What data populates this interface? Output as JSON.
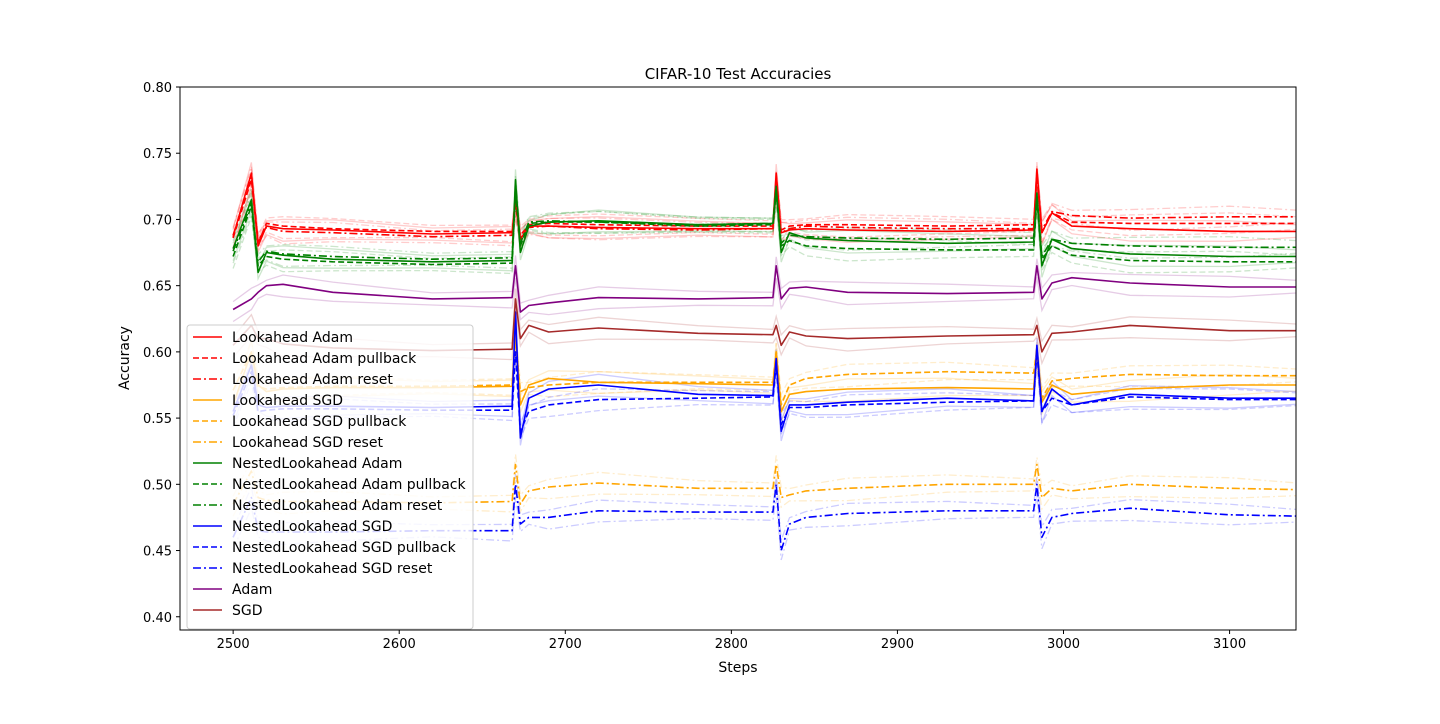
{
  "chart_data": {
    "type": "line",
    "title": "CIFAR-10 Test Accuracies",
    "xlabel": "Steps",
    "ylabel": "Accuracy",
    "xlim": [
      2468,
      3140
    ],
    "ylim": [
      0.39,
      0.8
    ],
    "xticks": [
      2500,
      2600,
      2700,
      2800,
      2900,
      3000,
      3100
    ],
    "yticks": [
      0.4,
      0.45,
      0.5,
      0.55,
      0.6,
      0.65,
      0.7,
      0.75,
      0.8
    ],
    "ytick_labels": [
      "0.40",
      "0.45",
      "0.50",
      "0.55",
      "0.60",
      "0.65",
      "0.70",
      "0.75",
      "0.80"
    ],
    "grid": false,
    "legend_position": "lower-left",
    "x": [
      2500,
      2511,
      2515,
      2520,
      2530,
      2560,
      2620,
      2668,
      2670,
      2673,
      2678,
      2690,
      2720,
      2780,
      2825,
      2827,
      2830,
      2835,
      2845,
      2870,
      2930,
      2982,
      2984,
      2987,
      2993,
      3005,
      3040,
      3100,
      3140
    ],
    "series": [
      {
        "name": "Lookahead Adam",
        "color": "#ff0000",
        "dash": "solid",
        "values": [
          0.687,
          0.735,
          0.68,
          0.695,
          0.693,
          0.692,
          0.689,
          0.69,
          0.715,
          0.685,
          0.695,
          0.695,
          0.694,
          0.693,
          0.693,
          0.735,
          0.69,
          0.692,
          0.693,
          0.692,
          0.691,
          0.692,
          0.738,
          0.69,
          0.705,
          0.695,
          0.693,
          0.691,
          0.691
        ]
      },
      {
        "name": "Lookahead Adam pullback",
        "color": "#ff0000",
        "dash": "dashed",
        "values": [
          0.686,
          0.73,
          0.682,
          0.697,
          0.695,
          0.693,
          0.691,
          0.691,
          0.71,
          0.688,
          0.696,
          0.697,
          0.696,
          0.695,
          0.695,
          0.73,
          0.692,
          0.695,
          0.696,
          0.696,
          0.695,
          0.696,
          0.733,
          0.69,
          0.705,
          0.698,
          0.697,
          0.697,
          0.697
        ]
      },
      {
        "name": "Lookahead Adam reset",
        "color": "#ff0000",
        "dash": "dashdot",
        "values": [
          0.688,
          0.732,
          0.684,
          0.694,
          0.691,
          0.69,
          0.687,
          0.688,
          0.712,
          0.686,
          0.694,
          0.695,
          0.693,
          0.692,
          0.693,
          0.728,
          0.69,
          0.693,
          0.695,
          0.694,
          0.693,
          0.693,
          0.735,
          0.692,
          0.706,
          0.703,
          0.701,
          0.702,
          0.702
        ]
      },
      {
        "name": "Lookahead SGD",
        "color": "#ffa500",
        "dash": "solid",
        "values": [
          0.56,
          0.6,
          0.575,
          0.57,
          0.572,
          0.573,
          0.573,
          0.574,
          0.615,
          0.56,
          0.575,
          0.58,
          0.577,
          0.576,
          0.575,
          0.6,
          0.555,
          0.568,
          0.57,
          0.572,
          0.573,
          0.572,
          0.6,
          0.562,
          0.575,
          0.568,
          0.572,
          0.575,
          0.575
        ]
      },
      {
        "name": "Lookahead SGD pullback",
        "color": "#ffa500",
        "dash": "dashed",
        "values": [
          0.571,
          0.6,
          0.574,
          0.572,
          0.573,
          0.574,
          0.574,
          0.575,
          0.61,
          0.57,
          0.573,
          0.575,
          0.577,
          0.577,
          0.577,
          0.6,
          0.56,
          0.575,
          0.58,
          0.583,
          0.585,
          0.584,
          0.602,
          0.565,
          0.578,
          0.58,
          0.583,
          0.582,
          0.582
        ]
      },
      {
        "name": "Lookahead SGD reset",
        "color": "#ffa500",
        "dash": "dashdot",
        "values": [
          0.485,
          0.51,
          0.49,
          0.488,
          0.487,
          0.487,
          0.486,
          0.487,
          0.515,
          0.485,
          0.495,
          0.498,
          0.501,
          0.497,
          0.497,
          0.515,
          0.49,
          0.492,
          0.495,
          0.497,
          0.5,
          0.5,
          0.515,
          0.49,
          0.497,
          0.495,
          0.5,
          0.497,
          0.496
        ]
      },
      {
        "name": "NestedLookahead Adam",
        "color": "#008000",
        "dash": "solid",
        "values": [
          0.678,
          0.715,
          0.66,
          0.675,
          0.673,
          0.67,
          0.668,
          0.669,
          0.73,
          0.675,
          0.695,
          0.698,
          0.699,
          0.696,
          0.697,
          0.725,
          0.675,
          0.69,
          0.686,
          0.684,
          0.682,
          0.683,
          0.72,
          0.665,
          0.685,
          0.678,
          0.674,
          0.672,
          0.672
        ]
      },
      {
        "name": "NestedLookahead Adam pullback",
        "color": "#008000",
        "dash": "dashed",
        "values": [
          0.672,
          0.71,
          0.665,
          0.672,
          0.67,
          0.668,
          0.666,
          0.667,
          0.72,
          0.68,
          0.697,
          0.698,
          0.698,
          0.695,
          0.696,
          0.72,
          0.68,
          0.684,
          0.68,
          0.678,
          0.677,
          0.677,
          0.715,
          0.67,
          0.68,
          0.673,
          0.669,
          0.668,
          0.668
        ]
      },
      {
        "name": "NestedLookahead Adam reset",
        "color": "#008000",
        "dash": "dashdot",
        "values": [
          0.676,
          0.712,
          0.668,
          0.676,
          0.674,
          0.672,
          0.67,
          0.671,
          0.725,
          0.682,
          0.698,
          0.699,
          0.698,
          0.696,
          0.697,
          0.722,
          0.682,
          0.688,
          0.687,
          0.686,
          0.685,
          0.686,
          0.718,
          0.672,
          0.685,
          0.682,
          0.68,
          0.679,
          0.679
        ]
      },
      {
        "name": "NestedLookahead SGD",
        "color": "#0000ff",
        "dash": "solid",
        "values": [
          0.555,
          0.59,
          0.56,
          0.558,
          0.559,
          0.559,
          0.558,
          0.559,
          0.63,
          0.535,
          0.565,
          0.572,
          0.575,
          0.568,
          0.567,
          0.595,
          0.54,
          0.56,
          0.56,
          0.562,
          0.565,
          0.563,
          0.605,
          0.555,
          0.572,
          0.56,
          0.568,
          0.565,
          0.565
        ]
      },
      {
        "name": "NestedLookahead SGD pullback",
        "color": "#0000ff",
        "dash": "dashed",
        "values": [
          0.552,
          0.585,
          0.555,
          0.556,
          0.557,
          0.557,
          0.556,
          0.556,
          0.6,
          0.54,
          0.555,
          0.56,
          0.564,
          0.565,
          0.566,
          0.59,
          0.545,
          0.558,
          0.558,
          0.56,
          0.562,
          0.563,
          0.6,
          0.555,
          0.565,
          0.56,
          0.566,
          0.564,
          0.564
        ]
      },
      {
        "name": "NestedLookahead SGD reset",
        "color": "#0000ff",
        "dash": "dashdot",
        "values": [
          0.46,
          0.49,
          0.465,
          0.464,
          0.464,
          0.464,
          0.465,
          0.465,
          0.5,
          0.47,
          0.475,
          0.475,
          0.48,
          0.479,
          0.479,
          0.5,
          0.45,
          0.47,
          0.475,
          0.478,
          0.48,
          0.48,
          0.5,
          0.46,
          0.475,
          0.478,
          0.482,
          0.477,
          0.476
        ]
      },
      {
        "name": "Adam",
        "color": "#800080",
        "dash": "solid",
        "values": [
          0.632,
          0.64,
          0.645,
          0.65,
          0.651,
          0.645,
          0.64,
          0.641,
          0.665,
          0.63,
          0.635,
          0.637,
          0.641,
          0.64,
          0.641,
          0.665,
          0.64,
          0.648,
          0.649,
          0.645,
          0.644,
          0.645,
          0.665,
          0.64,
          0.652,
          0.656,
          0.652,
          0.649,
          0.649
        ]
      },
      {
        "name": "SGD",
        "color": "#a52a2a",
        "dash": "solid",
        "values": [
          0.605,
          0.62,
          0.61,
          0.61,
          0.606,
          0.603,
          0.601,
          0.602,
          0.64,
          0.61,
          0.62,
          0.615,
          0.618,
          0.614,
          0.613,
          0.62,
          0.605,
          0.615,
          0.612,
          0.61,
          0.612,
          0.613,
          0.62,
          0.6,
          0.614,
          0.615,
          0.62,
          0.616,
          0.616
        ]
      }
    ]
  }
}
